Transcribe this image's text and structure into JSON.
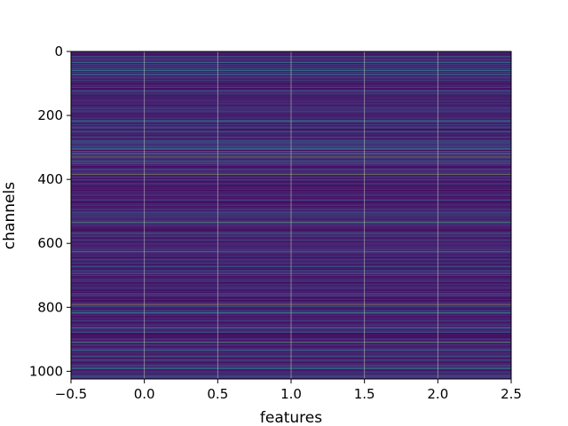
{
  "chart_data": {
    "type": "heatmap",
    "title": "",
    "xlabel": "features",
    "ylabel": "channels",
    "xlim": [
      -0.5,
      2.5
    ],
    "ylim": [
      1024,
      0
    ],
    "rows": 1024,
    "columns": 3,
    "x_ticks": [
      {
        "value": -0.5,
        "label": "−0.5"
      },
      {
        "value": 0.0,
        "label": "0.0"
      },
      {
        "value": 0.5,
        "label": "0.5"
      },
      {
        "value": 1.0,
        "label": "1.0"
      },
      {
        "value": 1.5,
        "label": "1.5"
      },
      {
        "value": 2.0,
        "label": "2.0"
      },
      {
        "value": 2.5,
        "label": "2.5"
      }
    ],
    "y_ticks": [
      {
        "value": 0,
        "label": "0"
      },
      {
        "value": 200,
        "label": "200"
      },
      {
        "value": 400,
        "label": "400"
      },
      {
        "value": 600,
        "label": "600"
      },
      {
        "value": 800,
        "label": "800"
      },
      {
        "value": 1000,
        "label": "1000"
      }
    ],
    "grid": true,
    "colormap": "viridis",
    "colors": {
      "viridis_low": "#440154",
      "viridis_mid": "#21918c",
      "viridis_high": "#fde725",
      "grid": "#b0b0b0"
    }
  }
}
